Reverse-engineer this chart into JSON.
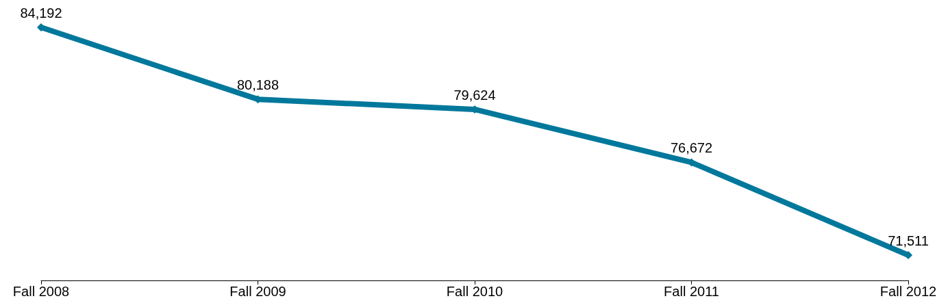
{
  "chart_data": {
    "type": "line",
    "categories": [
      "Fall 2008",
      "Fall 2009",
      "Fall 2010",
      "Fall 2011",
      "Fall 2012"
    ],
    "series": [
      {
        "color": "#00789c",
        "values": [
          84192,
          80188,
          79624,
          76672,
          71511
        ],
        "value_labels": [
          "84,192",
          "80,188",
          "79,624",
          "76,672",
          "71,511"
        ]
      }
    ],
    "marker": "diamond",
    "line_style": "solid"
  }
}
